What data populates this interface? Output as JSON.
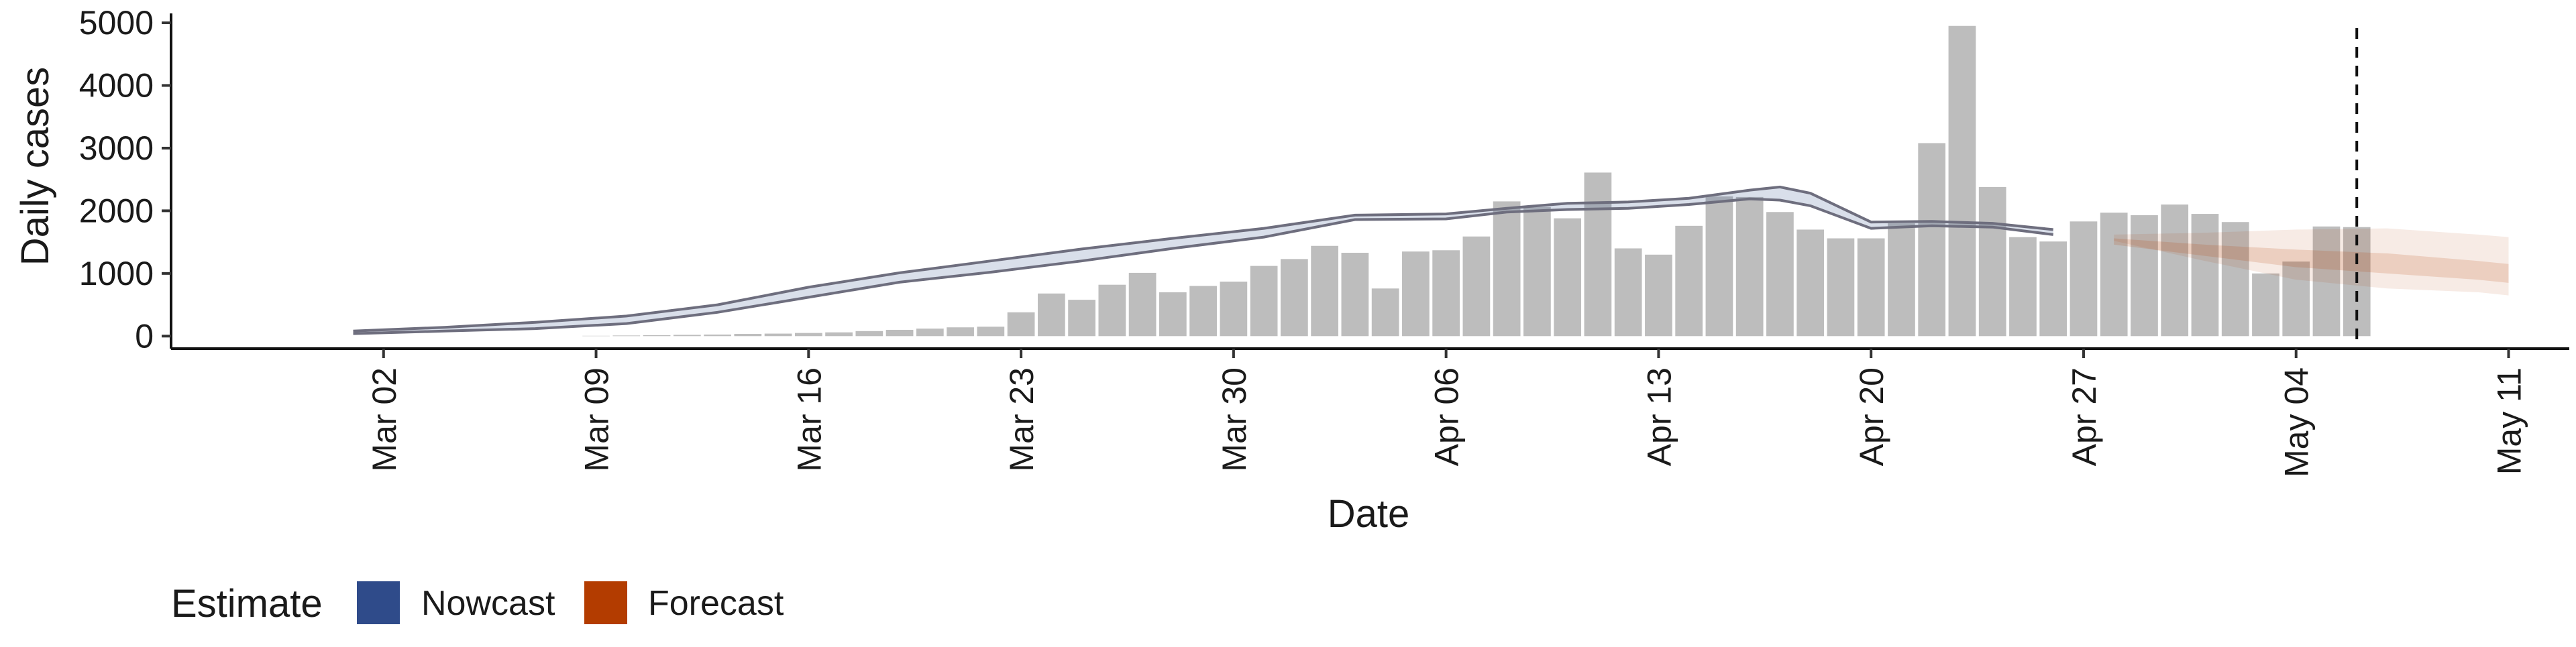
{
  "chart_data": {
    "type": "bar",
    "xlabel": "Date",
    "ylabel": "Daily cases",
    "ylim": [
      -200,
      5150
    ],
    "xlim": [
      "2020-02-24",
      "2020-05-13"
    ],
    "y_ticks": [
      0,
      1000,
      2000,
      3000,
      4000,
      5000
    ],
    "x_ticks": [
      {
        "date": "2020-03-02",
        "label": "Mar 02"
      },
      {
        "date": "2020-03-09",
        "label": "Mar 09"
      },
      {
        "date": "2020-03-16",
        "label": "Mar 16"
      },
      {
        "date": "2020-03-23",
        "label": "Mar 23"
      },
      {
        "date": "2020-03-30",
        "label": "Mar 30"
      },
      {
        "date": "2020-04-06",
        "label": "Apr 06"
      },
      {
        "date": "2020-04-13",
        "label": "Apr 13"
      },
      {
        "date": "2020-04-20",
        "label": "Apr 20"
      },
      {
        "date": "2020-04-27",
        "label": "Apr 27"
      },
      {
        "date": "2020-05-04",
        "label": "May 04"
      },
      {
        "date": "2020-05-11",
        "label": "May 11"
      }
    ],
    "grid": false,
    "legend_position": "bottom-left",
    "vline_date": "2020-05-06",
    "bars": {
      "color": "#bdbdbd",
      "dates": [
        "2020-03-09",
        "2020-03-10",
        "2020-03-11",
        "2020-03-12",
        "2020-03-13",
        "2020-03-14",
        "2020-03-15",
        "2020-03-16",
        "2020-03-17",
        "2020-03-18",
        "2020-03-19",
        "2020-03-20",
        "2020-03-21",
        "2020-03-22",
        "2020-03-23",
        "2020-03-24",
        "2020-03-25",
        "2020-03-26",
        "2020-03-27",
        "2020-03-28",
        "2020-03-29",
        "2020-03-30",
        "2020-03-31",
        "2020-04-01",
        "2020-04-02",
        "2020-04-03",
        "2020-04-04",
        "2020-04-05",
        "2020-04-06",
        "2020-04-07",
        "2020-04-08",
        "2020-04-09",
        "2020-04-10",
        "2020-04-11",
        "2020-04-12",
        "2020-04-13",
        "2020-04-14",
        "2020-04-15",
        "2020-04-16",
        "2020-04-17",
        "2020-04-18",
        "2020-04-19",
        "2020-04-20",
        "2020-04-21",
        "2020-04-22",
        "2020-04-23",
        "2020-04-24",
        "2020-04-25",
        "2020-04-26",
        "2020-04-27",
        "2020-04-28",
        "2020-04-29",
        "2020-04-30",
        "2020-05-01",
        "2020-05-02",
        "2020-05-03",
        "2020-05-04",
        "2020-05-05",
        "2020-05-06"
      ],
      "values": [
        5,
        10,
        15,
        20,
        25,
        35,
        40,
        50,
        60,
        80,
        100,
        120,
        140,
        150,
        380,
        680,
        580,
        820,
        1010,
        700,
        800,
        870,
        1120,
        1230,
        1440,
        1330,
        760,
        1350,
        1370,
        1590,
        2150,
        2060,
        1880,
        2610,
        1400,
        1300,
        1760,
        2230,
        2220,
        1980,
        1700,
        1560,
        1560,
        1800,
        3080,
        4950,
        2380,
        1580,
        1510,
        1830,
        1970,
        1930,
        2100,
        1950,
        1820,
        1000,
        1190,
        1750,
        1740
      ]
    },
    "series": [
      {
        "name": "Nowcast",
        "color": "#2f4b8a",
        "line_color": "#6e6e7e",
        "dates": [
          "2020-03-01",
          "2020-03-04",
          "2020-03-07",
          "2020-03-10",
          "2020-03-13",
          "2020-03-16",
          "2020-03-19",
          "2020-03-22",
          "2020-03-25",
          "2020-03-28",
          "2020-03-31",
          "2020-04-03",
          "2020-04-06",
          "2020-04-08",
          "2020-04-10",
          "2020-04-12",
          "2020-04-14",
          "2020-04-16",
          "2020-04-17",
          "2020-04-18",
          "2020-04-20",
          "2020-04-22",
          "2020-04-24",
          "2020-04-26"
        ],
        "lower": [
          40,
          80,
          120,
          200,
          380,
          620,
          860,
          1020,
          1200,
          1400,
          1580,
          1860,
          1870,
          1980,
          2020,
          2040,
          2100,
          2190,
          2170,
          2080,
          1720,
          1760,
          1740,
          1620
        ],
        "upper": [
          80,
          140,
          220,
          320,
          500,
          780,
          1010,
          1200,
          1390,
          1560,
          1720,
          1930,
          1950,
          2040,
          2120,
          2140,
          2200,
          2330,
          2380,
          2280,
          1820,
          1830,
          1800,
          1700
        ]
      },
      {
        "name": "Forecast",
        "color": "#b33c00",
        "dates": [
          "2020-04-28",
          "2020-05-01",
          "2020-05-04",
          "2020-05-07",
          "2020-05-10",
          "2020-05-11"
        ],
        "outer_lower": [
          1520,
          1200,
          900,
          760,
          700,
          650
        ],
        "outer_upper": [
          1620,
          1650,
          1700,
          1720,
          1620,
          1580
        ],
        "inner_lower": [
          1460,
          1280,
          1100,
          1000,
          900,
          850
        ],
        "inner_upper": [
          1560,
          1460,
          1380,
          1320,
          1200,
          1150
        ]
      }
    ]
  },
  "legend": {
    "title": "Estimate",
    "items": [
      {
        "label": "Nowcast",
        "color": "#2f4b8a"
      },
      {
        "label": "Forecast",
        "color": "#b33c00"
      }
    ]
  }
}
